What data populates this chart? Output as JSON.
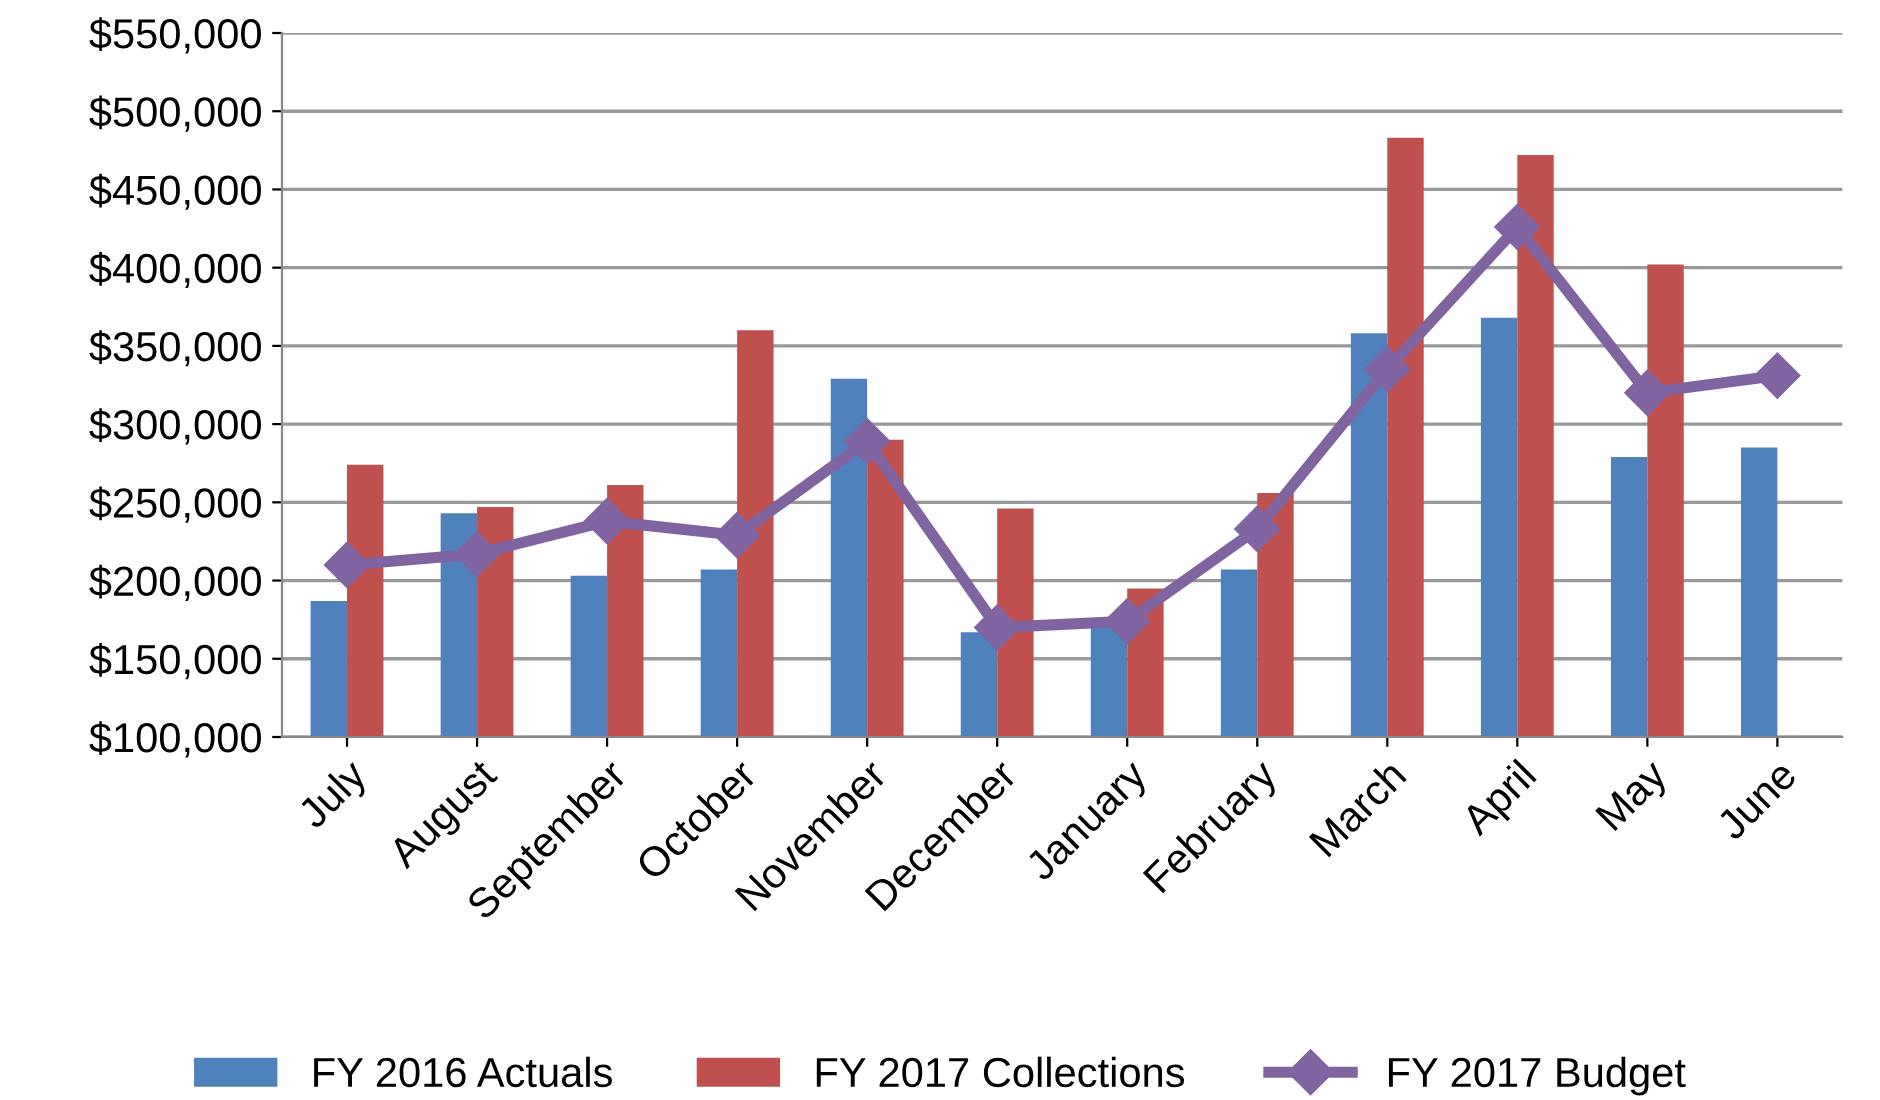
{
  "chart_data": {
    "type": "bar",
    "categories": [
      "July",
      "August",
      "September",
      "October",
      "November",
      "December",
      "January",
      "February",
      "March",
      "April",
      "May",
      "June"
    ],
    "series": [
      {
        "name": "FY 2016 Actuals",
        "color": "#4f81bd",
        "values": [
          187000,
          243000,
          203000,
          207000,
          329000,
          167000,
          173000,
          207000,
          358000,
          368000,
          279000,
          285000
        ]
      },
      {
        "name": "FY 2017 Collections",
        "color": "#c0504d",
        "values": [
          274000,
          247000,
          261000,
          360000,
          290000,
          246000,
          195000,
          256000,
          483000,
          472000,
          402000,
          null
        ]
      },
      {
        "name": "FY 2017 Budget",
        "type": "line",
        "color": "#8064a2",
        "marker": "diamond",
        "values": [
          210000,
          217000,
          238000,
          229000,
          289000,
          170000,
          174000,
          233000,
          335000,
          426000,
          320000,
          331000
        ]
      }
    ],
    "ylim": [
      100000,
      550000
    ],
    "yticks": [
      {
        "value": 100000,
        "label": "$100,000"
      },
      {
        "value": 150000,
        "label": "$150,000"
      },
      {
        "value": 200000,
        "label": "$200,000"
      },
      {
        "value": 250000,
        "label": "$250,000"
      },
      {
        "value": 300000,
        "label": "$300,000"
      },
      {
        "value": 350000,
        "label": "$350,000"
      },
      {
        "value": 400000,
        "label": "$400,000"
      },
      {
        "value": 450000,
        "label": "$450,000"
      },
      {
        "value": 500000,
        "label": "$500,000"
      },
      {
        "value": 550000,
        "label": "$550,000"
      }
    ],
    "grid": "y",
    "legend": "bottom"
  }
}
